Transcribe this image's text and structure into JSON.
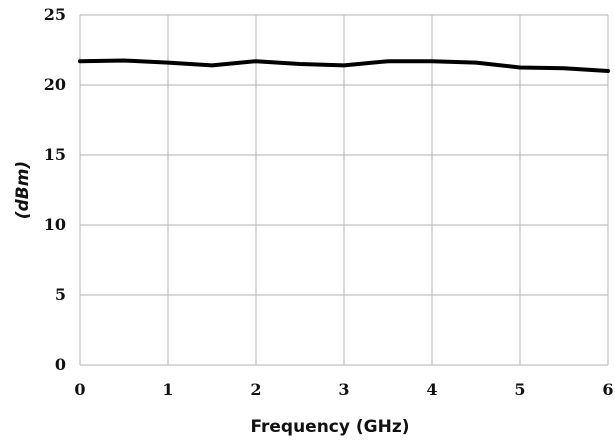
{
  "chart_data": {
    "type": "line",
    "title": "",
    "xlabel": "Frequency (GHz)",
    "ylabel": "(dBm)",
    "xlim": [
      0,
      6
    ],
    "ylim": [
      0,
      25
    ],
    "xticks": [
      "0",
      "1",
      "2",
      "3",
      "4",
      "5",
      "6"
    ],
    "yticks": [
      "0",
      "5",
      "10",
      "15",
      "20",
      "25"
    ],
    "grid": true,
    "legend": "none",
    "series": [
      {
        "color": "#000000",
        "x": [
          0,
          0.5,
          1,
          1.5,
          2,
          2.5,
          3,
          3.5,
          4,
          4.5,
          5,
          5.5,
          6
        ],
        "y": [
          21.7,
          21.75,
          21.6,
          21.4,
          21.7,
          21.5,
          21.4,
          21.7,
          21.7,
          21.6,
          21.25,
          21.2,
          21.0
        ]
      }
    ]
  }
}
